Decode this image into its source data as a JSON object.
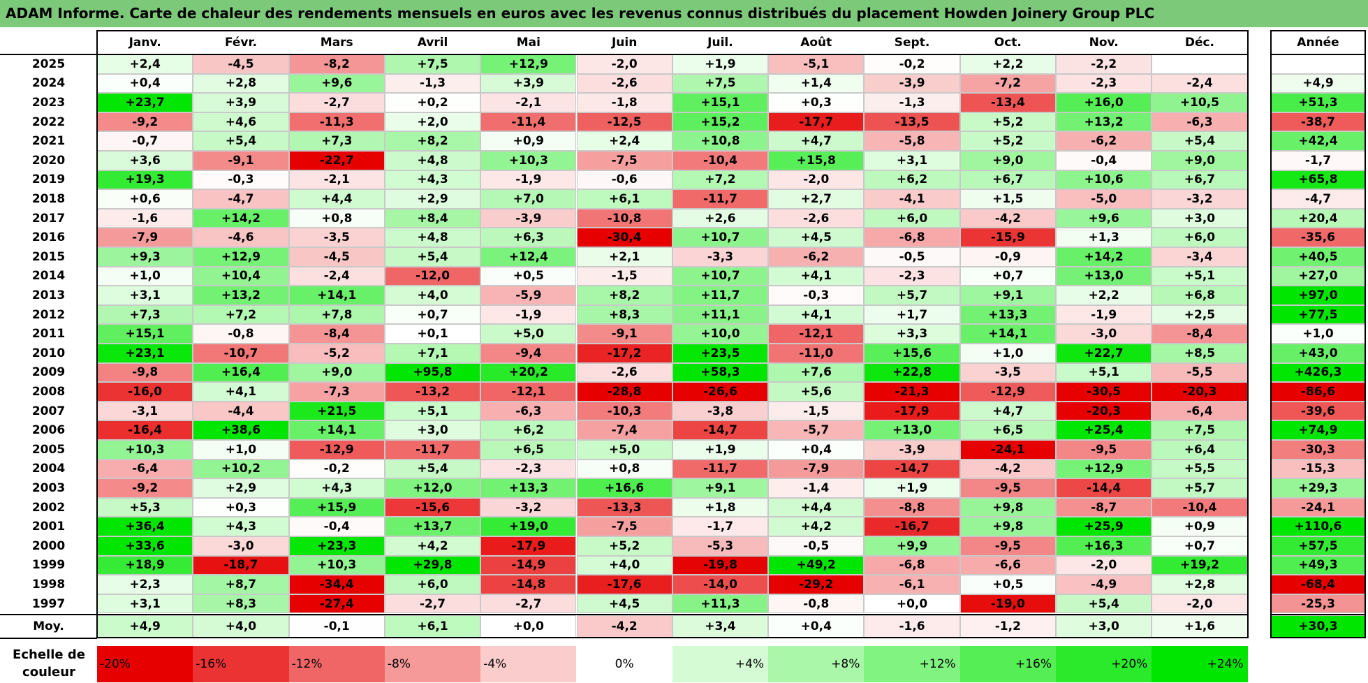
{
  "title": "ADAM Informe. Carte de chaleur des rendements mensuels en euros avec les revenus connus distribués du placement Howden Joinery Group PLC",
  "chart_data": {
    "type": "heatmap",
    "columns": [
      "Janv.",
      "Févr.",
      "Mars",
      "Avril",
      "Mai",
      "Juin",
      "Juil.",
      "Août",
      "Sept.",
      "Oct.",
      "Nov.",
      "Déc."
    ],
    "annual_header": "Année",
    "rows": [
      {
        "year": "2025",
        "values": [
          "+2,4",
          "-4,5",
          "-8,2",
          "+7,5",
          "+12,9",
          "-2,0",
          "+1,9",
          "-5,1",
          "-0,2",
          "+2,2",
          "-2,2",
          ""
        ],
        "annual": ""
      },
      {
        "year": "2024",
        "values": [
          "+0,4",
          "+2,8",
          "+9,6",
          "-1,3",
          "+3,9",
          "-2,6",
          "+7,5",
          "+1,4",
          "-3,9",
          "-7,2",
          "-2,3",
          "-2,4"
        ],
        "annual": "+4,9"
      },
      {
        "year": "2023",
        "values": [
          "+23,7",
          "+3,9",
          "-2,7",
          "+0,2",
          "-2,1",
          "-1,8",
          "+15,1",
          "+0,3",
          "-1,3",
          "-13,4",
          "+16,0",
          "+10,5"
        ],
        "annual": "+51,3"
      },
      {
        "year": "2022",
        "values": [
          "-9,2",
          "+4,6",
          "-11,3",
          "+2,0",
          "-11,4",
          "-12,5",
          "+15,2",
          "-17,7",
          "-13,5",
          "+5,2",
          "+13,2",
          "-6,3"
        ],
        "annual": "-38,7"
      },
      {
        "year": "2021",
        "values": [
          "-0,7",
          "+5,4",
          "+7,3",
          "+8,2",
          "+0,9",
          "+2,4",
          "+10,8",
          "+4,7",
          "-5,8",
          "+5,2",
          "-6,2",
          "+5,4"
        ],
        "annual": "+42,4"
      },
      {
        "year": "2020",
        "values": [
          "+3,6",
          "-9,1",
          "-22,7",
          "+4,8",
          "+10,3",
          "-7,5",
          "-10,4",
          "+15,8",
          "+3,1",
          "+9,0",
          "-0,4",
          "+9,0"
        ],
        "annual": "-1,7"
      },
      {
        "year": "2019",
        "values": [
          "+19,3",
          "-0,3",
          "-2,1",
          "+4,3",
          "-1,9",
          "-0,6",
          "+7,2",
          "-2,0",
          "+6,2",
          "+6,7",
          "+10,6",
          "+6,7"
        ],
        "annual": "+65,8"
      },
      {
        "year": "2018",
        "values": [
          "+0,6",
          "-4,7",
          "+4,4",
          "+2,9",
          "+7,0",
          "+6,1",
          "-11,7",
          "+2,7",
          "-4,1",
          "+1,5",
          "-5,0",
          "-3,2"
        ],
        "annual": "-4,7"
      },
      {
        "year": "2017",
        "values": [
          "-1,6",
          "+14,2",
          "+0,8",
          "+8,4",
          "-3,9",
          "-10,8",
          "+2,6",
          "-2,6",
          "+6,0",
          "-4,2",
          "+9,6",
          "+3,0"
        ],
        "annual": "+20,4"
      },
      {
        "year": "2016",
        "values": [
          "-7,9",
          "-4,6",
          "-3,5",
          "+4,8",
          "+6,3",
          "-30,4",
          "+10,7",
          "+4,5",
          "-6,8",
          "-15,9",
          "+1,3",
          "+6,0"
        ],
        "annual": "-35,6"
      },
      {
        "year": "2015",
        "values": [
          "+9,3",
          "+12,9",
          "-4,5",
          "+5,4",
          "+12,4",
          "+2,1",
          "-3,3",
          "-6,2",
          "-0,5",
          "-0,9",
          "+14,2",
          "-3,4"
        ],
        "annual": "+40,5"
      },
      {
        "year": "2014",
        "values": [
          "+1,0",
          "+10,4",
          "-2,4",
          "-12,0",
          "+0,5",
          "-1,5",
          "+10,7",
          "+4,1",
          "-2,3",
          "+0,7",
          "+13,0",
          "+5,1"
        ],
        "annual": "+27,0"
      },
      {
        "year": "2013",
        "values": [
          "+3,1",
          "+13,2",
          "+14,1",
          "+4,0",
          "-5,9",
          "+8,2",
          "+11,7",
          "-0,3",
          "+5,7",
          "+9,1",
          "+2,2",
          "+6,8"
        ],
        "annual": "+97,0"
      },
      {
        "year": "2012",
        "values": [
          "+7,3",
          "+7,2",
          "+7,8",
          "+0,7",
          "-1,9",
          "+8,3",
          "+11,1",
          "+4,1",
          "+1,7",
          "+13,3",
          "-1,9",
          "+2,5"
        ],
        "annual": "+77,5"
      },
      {
        "year": "2011",
        "values": [
          "+15,1",
          "-0,8",
          "-8,4",
          "+0,1",
          "+5,0",
          "-9,1",
          "+10,0",
          "-12,1",
          "+3,3",
          "+14,1",
          "-3,0",
          "-8,4"
        ],
        "annual": "+1,0"
      },
      {
        "year": "2010",
        "values": [
          "+23,1",
          "-10,7",
          "-5,2",
          "+7,1",
          "-9,4",
          "-17,2",
          "+23,5",
          "-11,0",
          "+15,6",
          "+1,0",
          "+22,7",
          "+8,5"
        ],
        "annual": "+43,0"
      },
      {
        "year": "2009",
        "values": [
          "-9,8",
          "+16,4",
          "+9,0",
          "+95,8",
          "+20,2",
          "-2,6",
          "+58,3",
          "+7,6",
          "+22,8",
          "-3,5",
          "+5,1",
          "-5,5"
        ],
        "annual": "+426,3"
      },
      {
        "year": "2008",
        "values": [
          "-16,0",
          "+4,1",
          "-7,3",
          "-13,2",
          "-12,1",
          "-28,8",
          "-26,6",
          "+5,6",
          "-21,3",
          "-12,9",
          "-30,5",
          "-20,3"
        ],
        "annual": "-86,6"
      },
      {
        "year": "2007",
        "values": [
          "-3,1",
          "-4,4",
          "+21,5",
          "+5,1",
          "-6,3",
          "-10,3",
          "-3,8",
          "-1,5",
          "-17,9",
          "+4,7",
          "-20,3",
          "-6,4"
        ],
        "annual": "-39,6"
      },
      {
        "year": "2006",
        "values": [
          "-16,4",
          "+38,6",
          "+14,1",
          "+3,0",
          "+6,2",
          "-7,4",
          "-14,7",
          "-5,7",
          "+13,0",
          "+6,5",
          "+25,4",
          "+7,5"
        ],
        "annual": "+74,9"
      },
      {
        "year": "2005",
        "values": [
          "+10,3",
          "+1,0",
          "-12,9",
          "-11,7",
          "+6,5",
          "+5,0",
          "+1,9",
          "+0,4",
          "-3,9",
          "-24,1",
          "-9,5",
          "+6,4"
        ],
        "annual": "-30,3"
      },
      {
        "year": "2004",
        "values": [
          "-6,4",
          "+10,2",
          "-0,2",
          "+5,4",
          "-2,3",
          "+0,8",
          "-11,7",
          "-7,9",
          "-14,7",
          "-4,2",
          "+12,9",
          "+5,5"
        ],
        "annual": "-15,3"
      },
      {
        "year": "2003",
        "values": [
          "-9,2",
          "+2,9",
          "+4,3",
          "+12,0",
          "+13,3",
          "+16,6",
          "+9,1",
          "-1,4",
          "+1,9",
          "-9,5",
          "-14,4",
          "+5,7"
        ],
        "annual": "+29,3"
      },
      {
        "year": "2002",
        "values": [
          "+5,3",
          "+0,3",
          "+15,9",
          "-15,6",
          "-3,2",
          "-13,3",
          "+1,8",
          "+4,4",
          "-8,8",
          "+9,8",
          "-8,7",
          "-10,4"
        ],
        "annual": "-24,1"
      },
      {
        "year": "2001",
        "values": [
          "+36,4",
          "+4,3",
          "-0,4",
          "+13,7",
          "+19,0",
          "-7,5",
          "-1,7",
          "+4,2",
          "-16,7",
          "+9,8",
          "+25,9",
          "+0,9"
        ],
        "annual": "+110,6"
      },
      {
        "year": "2000",
        "values": [
          "+33,6",
          "-3,0",
          "+23,3",
          "+4,2",
          "-17,9",
          "+5,2",
          "-5,3",
          "-0,5",
          "+9,9",
          "-9,5",
          "+16,3",
          "+0,7"
        ],
        "annual": "+57,5"
      },
      {
        "year": "1999",
        "values": [
          "+18,9",
          "-18,7",
          "+10,3",
          "+29,8",
          "-14,9",
          "+4,0",
          "-19,8",
          "+49,2",
          "-6,8",
          "-6,6",
          "-2,0",
          "+19,2"
        ],
        "annual": "+49,3"
      },
      {
        "year": "1998",
        "values": [
          "+2,3",
          "+8,7",
          "-34,4",
          "+6,0",
          "-14,8",
          "-17,6",
          "-14,0",
          "-29,2",
          "-6,1",
          "+0,5",
          "-4,9",
          "+2,8"
        ],
        "annual": "-68,4"
      },
      {
        "year": "1997",
        "values": [
          "+3,1",
          "+8,3",
          "-27,4",
          "-2,7",
          "-2,7",
          "+4,5",
          "+11,3",
          "-0,8",
          "+0,0",
          "-19,0",
          "+5,4",
          "-2,0"
        ],
        "annual": "-25,3"
      }
    ],
    "average": {
      "label": "Moy.",
      "values": [
        "+4,9",
        "+4,0",
        "-0,1",
        "+6,1",
        "+0,0",
        "-4,2",
        "+3,4",
        "+0,4",
        "-1,6",
        "-1,2",
        "+3,0",
        "+1,6"
      ],
      "annual": "+30,3"
    },
    "scale": {
      "label": "Echelle de couleur",
      "stops": [
        "-20%",
        "-16%",
        "-12%",
        "-8%",
        "-4%",
        "0%",
        "+4%",
        "+8%",
        "+12%",
        "+16%",
        "+20%",
        "+24%"
      ]
    },
    "colors": {
      "negative_max": "#e60000",
      "neutral": "#ffffff",
      "positive_max": "#00e600",
      "title_bar": "#7cc97a",
      "grid_border": "#c9c9c9"
    }
  }
}
